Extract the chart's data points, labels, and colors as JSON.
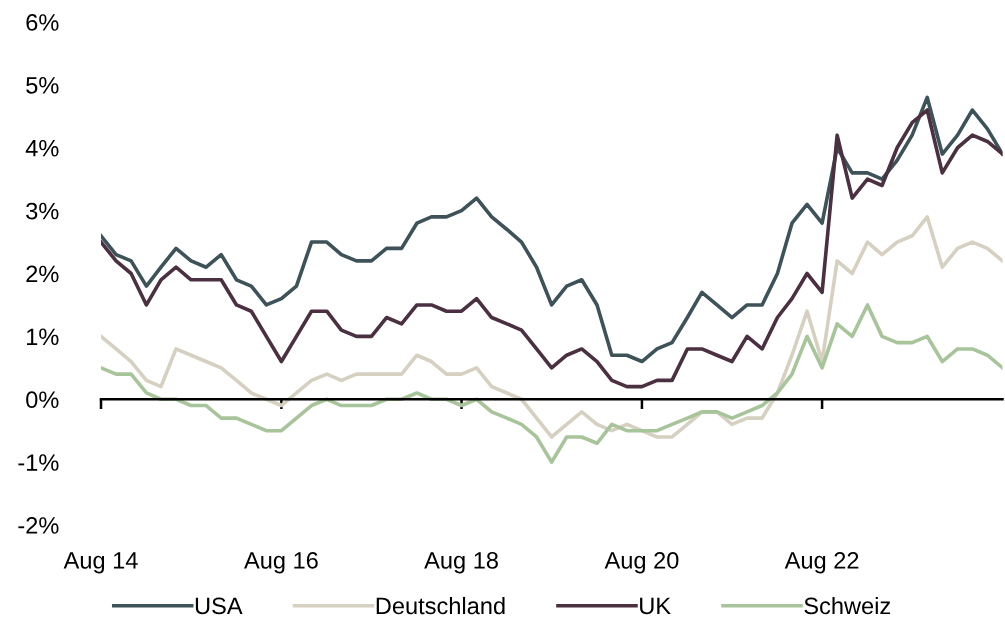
{
  "chart_data": {
    "type": "line",
    "x": [
      "2014-08",
      "2014-10",
      "2014-12",
      "2015-02",
      "2015-04",
      "2015-06",
      "2015-08",
      "2015-10",
      "2015-12",
      "2016-02",
      "2016-04",
      "2016-06",
      "2016-08",
      "2016-10",
      "2016-12",
      "2017-02",
      "2017-04",
      "2017-06",
      "2017-08",
      "2017-10",
      "2017-12",
      "2018-02",
      "2018-04",
      "2018-06",
      "2018-08",
      "2018-10",
      "2018-12",
      "2019-02",
      "2019-04",
      "2019-06",
      "2019-08",
      "2019-10",
      "2019-12",
      "2020-02",
      "2020-04",
      "2020-06",
      "2020-08",
      "2020-10",
      "2020-12",
      "2021-02",
      "2021-04",
      "2021-06",
      "2021-08",
      "2021-10",
      "2021-12",
      "2022-02",
      "2022-04",
      "2022-06",
      "2022-08",
      "2022-10",
      "2022-12",
      "2023-02",
      "2023-04",
      "2023-06",
      "2023-08",
      "2023-10",
      "2023-12",
      "2024-02",
      "2024-04",
      "2024-06",
      "2024-08"
    ],
    "series": [
      {
        "name": "USA",
        "color": "#3d5259",
        "values": [
          2.6,
          2.3,
          2.2,
          1.8,
          2.1,
          2.4,
          2.2,
          2.1,
          2.3,
          1.9,
          1.8,
          1.5,
          1.6,
          1.8,
          2.5,
          2.5,
          2.3,
          2.2,
          2.2,
          2.4,
          2.4,
          2.8,
          2.9,
          2.9,
          3.0,
          3.2,
          2.9,
          2.7,
          2.5,
          2.1,
          1.5,
          1.8,
          1.9,
          1.5,
          0.7,
          0.7,
          0.6,
          0.8,
          0.9,
          1.3,
          1.7,
          1.5,
          1.3,
          1.5,
          1.5,
          2.0,
          2.8,
          3.1,
          2.8,
          4.0,
          3.6,
          3.6,
          3.5,
          3.8,
          4.2,
          4.8,
          3.9,
          4.2,
          4.6,
          4.3,
          3.9
        ]
      },
      {
        "name": "Deutschland",
        "color": "#d6d0c0",
        "values": [
          1.0,
          0.8,
          0.6,
          0.3,
          0.2,
          0.8,
          0.7,
          0.6,
          0.5,
          0.3,
          0.1,
          0.0,
          -0.1,
          0.1,
          0.3,
          0.4,
          0.3,
          0.4,
          0.4,
          0.4,
          0.4,
          0.7,
          0.6,
          0.4,
          0.4,
          0.5,
          0.2,
          0.1,
          0.0,
          -0.3,
          -0.6,
          -0.4,
          -0.2,
          -0.4,
          -0.5,
          -0.4,
          -0.5,
          -0.6,
          -0.6,
          -0.4,
          -0.2,
          -0.2,
          -0.4,
          -0.3,
          -0.3,
          0.1,
          0.7,
          1.4,
          0.6,
          2.2,
          2.0,
          2.5,
          2.3,
          2.5,
          2.6,
          2.9,
          2.1,
          2.4,
          2.5,
          2.4,
          2.2
        ]
      },
      {
        "name": "UK",
        "color": "#4a3040",
        "values": [
          2.5,
          2.2,
          2.0,
          1.5,
          1.9,
          2.1,
          1.9,
          1.9,
          1.9,
          1.5,
          1.4,
          1.0,
          0.6,
          1.0,
          1.4,
          1.4,
          1.1,
          1.0,
          1.0,
          1.3,
          1.2,
          1.5,
          1.5,
          1.4,
          1.4,
          1.6,
          1.3,
          1.2,
          1.1,
          0.8,
          0.5,
          0.7,
          0.8,
          0.6,
          0.3,
          0.2,
          0.2,
          0.3,
          0.3,
          0.8,
          0.8,
          0.7,
          0.6,
          1.0,
          0.8,
          1.3,
          1.6,
          2.0,
          1.7,
          4.2,
          3.2,
          3.5,
          3.4,
          4.0,
          4.4,
          4.6,
          3.6,
          4.0,
          4.2,
          4.1,
          3.9
        ]
      },
      {
        "name": "Schweiz",
        "color": "#a8c49a",
        "values": [
          0.5,
          0.4,
          0.4,
          0.1,
          0.0,
          0.0,
          -0.1,
          -0.1,
          -0.3,
          -0.3,
          -0.4,
          -0.5,
          -0.5,
          -0.3,
          -0.1,
          0.0,
          -0.1,
          -0.1,
          -0.1,
          0.0,
          0.0,
          0.1,
          0.0,
          0.0,
          -0.1,
          0.0,
          -0.2,
          -0.3,
          -0.4,
          -0.6,
          -1.0,
          -0.6,
          -0.6,
          -0.7,
          -0.4,
          -0.5,
          -0.5,
          -0.5,
          -0.4,
          -0.3,
          -0.2,
          -0.2,
          -0.3,
          -0.2,
          -0.1,
          0.1,
          0.4,
          1.0,
          0.5,
          1.2,
          1.0,
          1.5,
          1.0,
          0.9,
          0.9,
          1.0,
          0.6,
          0.8,
          0.8,
          0.7,
          0.5
        ]
      }
    ],
    "xlim": [
      "2014-08",
      "2024-08"
    ],
    "xticks": [
      {
        "value": "2014-08",
        "label": "Aug 14"
      },
      {
        "value": "2016-08",
        "label": "Aug 16"
      },
      {
        "value": "2018-08",
        "label": "Aug 18"
      },
      {
        "value": "2020-08",
        "label": "Aug 20"
      },
      {
        "value": "2022-08",
        "label": "Aug 22"
      }
    ],
    "ylim": [
      -2,
      6
    ],
    "yticks": [
      {
        "value": -2,
        "label": "-2%"
      },
      {
        "value": -1,
        "label": "-1%"
      },
      {
        "value": 0,
        "label": "0%"
      },
      {
        "value": 1,
        "label": "1%"
      },
      {
        "value": 2,
        "label": "2%"
      },
      {
        "value": 3,
        "label": "3%"
      },
      {
        "value": 4,
        "label": "4%"
      },
      {
        "value": 5,
        "label": "5%"
      },
      {
        "value": 6,
        "label": "6%"
      }
    ],
    "legend": "bottom",
    "marker": "none",
    "line_style": "solid"
  }
}
